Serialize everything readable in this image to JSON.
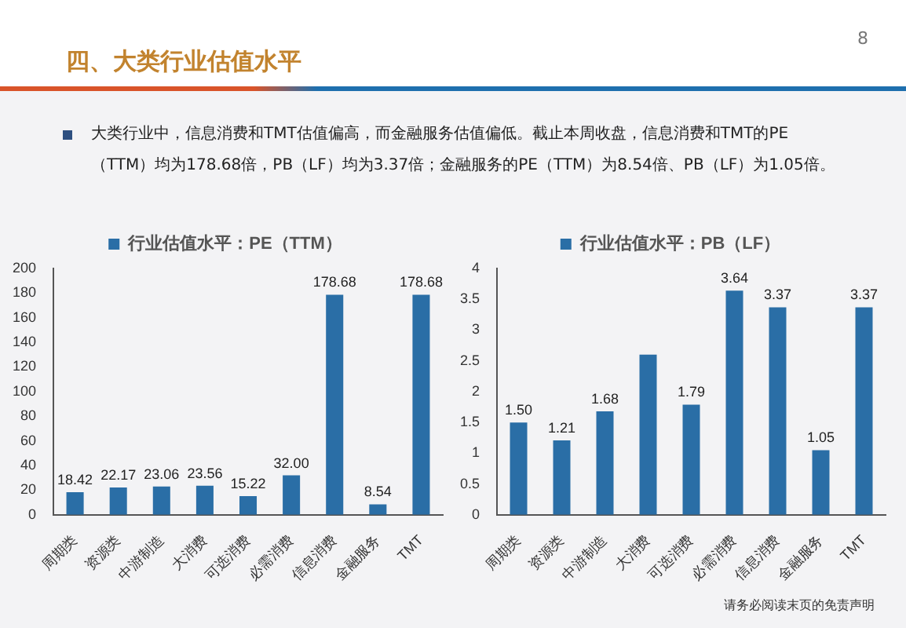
{
  "chart_data": [
    {
      "type": "bar",
      "categories": [
        "周期类",
        "资源类",
        "中游制造",
        "大消费",
        "可选消费",
        "必需消费",
        "信息消费",
        "金融服务",
        "TMT"
      ],
      "series": [
        {
          "name": "行业估值水平：PE（TTM）",
          "color": "#2a6ea6",
          "values": [
            18.42,
            22.17,
            23.06,
            23.56,
            15.22,
            32.0,
            178.68,
            8.54,
            178.68
          ],
          "value_labels": [
            "18.42",
            "22.17",
            "23.06",
            "23.56",
            "15.22",
            "32.00",
            "178.68",
            "8.54",
            "178.68"
          ]
        }
      ],
      "ylim": [
        0,
        200
      ],
      "yticks": [
        0,
        20,
        40,
        60,
        80,
        100,
        120,
        140,
        160,
        180,
        200
      ],
      "grid": false,
      "legend": "top",
      "annotations": [
        "四、大类行业估值水平",
        "8",
        "大类行业中，信息消费和TMT估值偏高，而金融服务估值偏低。截止本周收盘，信息消费和TMT的PE（TTM）均为178.68倍，PB（LF）均为3.37倍；金融服务的PE（TTM）为8.54倍、PB（LF）为1.05倍。"
      ]
    },
    {
      "type": "bar",
      "categories": [
        "周期类",
        "资源类",
        "中游制造",
        "大消费",
        "可选消费",
        "必需消费",
        "信息消费",
        "金融服务",
        "TMT"
      ],
      "series": [
        {
          "name": "行业估值水平：PB（LF）",
          "color": "#2a6ea6",
          "values": [
            1.5,
            1.21,
            1.68,
            2.6,
            1.79,
            3.64,
            3.37,
            1.05,
            3.37
          ],
          "value_labels": [
            "1.50",
            "1.21",
            "1.68",
            null,
            "1.79",
            "3.64",
            "3.37",
            "1.05",
            "3.37"
          ]
        }
      ],
      "ylim": [
        0,
        4
      ],
      "yticks": [
        0,
        0.5,
        1,
        1.5,
        2,
        2.5,
        3,
        3.5,
        4
      ],
      "grid": false,
      "legend": "top",
      "annotations": [
        "请务必阅读末页的免责声明"
      ]
    }
  ]
}
